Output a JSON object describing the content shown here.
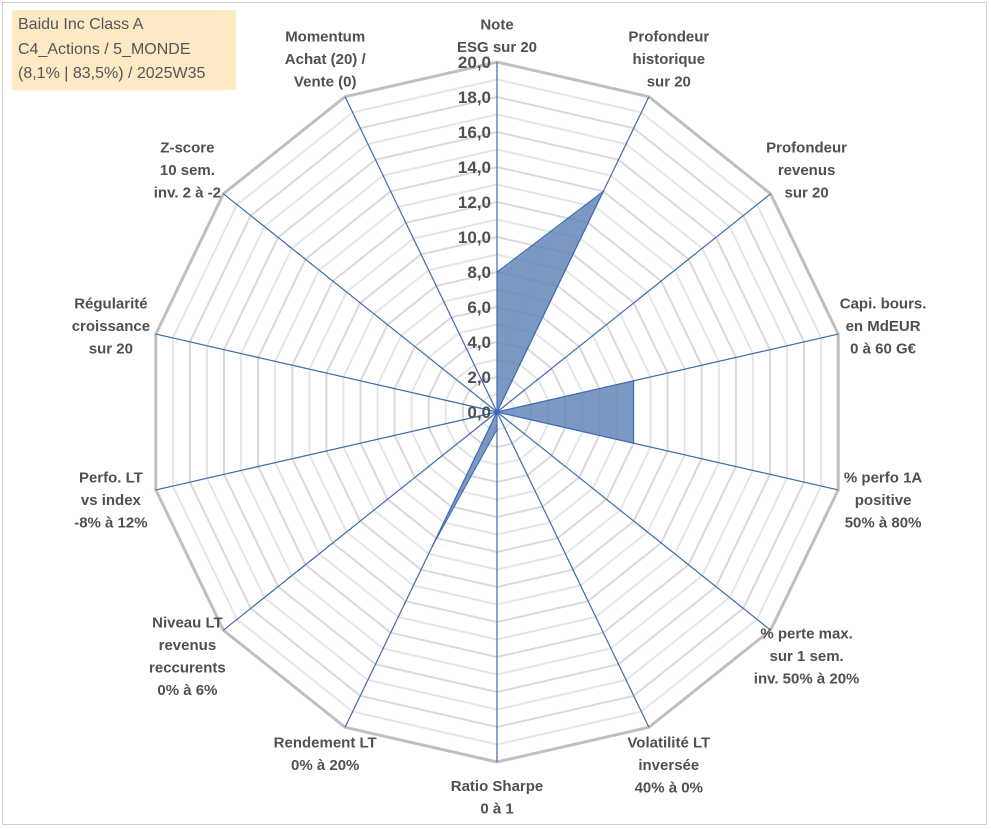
{
  "title": {
    "lines": [
      "Baidu Inc Class A",
      "C4_Actions / 5_MONDE",
      "(8,1% | 83,5%) / 2025W35"
    ]
  },
  "colors": {
    "outer_ring": "#bfbfbf",
    "inner_ring": "#d9d9d9",
    "spoke": "#3d6ab0",
    "fill": "#5b7fb5",
    "fill_opacity": 0.8,
    "label": "#505050",
    "title_bg": "#fde9c4"
  },
  "chart_data": {
    "type": "radar",
    "title": "",
    "rmin": 0,
    "rmax": 20,
    "ring_step": 1,
    "tick_labels": [
      "0,0",
      "2,0",
      "4,0",
      "6,0",
      "8,0",
      "10,0",
      "12,0",
      "14,0",
      "16,0",
      "18,0",
      "20,0"
    ],
    "tick_values": [
      0,
      2,
      4,
      6,
      8,
      10,
      12,
      14,
      16,
      18,
      20
    ],
    "axes": [
      {
        "label": [
          "Note",
          "ESG sur 20"
        ],
        "value": 8.0
      },
      {
        "label": [
          "Profondeur",
          "historique",
          "sur 20"
        ],
        "value": 14.0
      },
      {
        "label": [
          "Profondeur",
          "revenus",
          "sur 20"
        ],
        "value": 0.0
      },
      {
        "label": [
          "Capi. bours.",
          "en MdEUR",
          "0 à 60 G€"
        ],
        "value": 8.0
      },
      {
        "label": [
          "% perfo 1A",
          "positive",
          "50% à 80%"
        ],
        "value": 8.0
      },
      {
        "label": [
          "% perte max.",
          "sur 1 sem.",
          "inv. 50% à 20%"
        ],
        "value": 0.0
      },
      {
        "label": [
          "Volatilité LT",
          "inversée",
          "40% à 0%"
        ],
        "value": 0.0
      },
      {
        "label": [
          "Ratio Sharpe",
          "0 à 1"
        ],
        "value": 1.0
      },
      {
        "label": [
          "Rendement LT",
          "0% à 20%"
        ],
        "value": 8.5
      },
      {
        "label": [
          "Niveau LT",
          "revenus",
          "reccurents",
          "0% à 6%"
        ],
        "value": 0.0
      },
      {
        "label": [
          "Perfo. LT",
          "vs index",
          "-8% à 12%"
        ],
        "value": 0.0
      },
      {
        "label": [
          "Régularité",
          "croissance",
          "sur 20"
        ],
        "value": 0.0
      },
      {
        "label": [
          "Z-score",
          "10 sem.",
          "inv. 2 à -2"
        ],
        "value": 0.0
      },
      {
        "label": [
          "Momentum",
          "Achat (20) /",
          "Vente (0)"
        ],
        "value": 0.0
      }
    ],
    "grid": true,
    "legend": "none"
  }
}
